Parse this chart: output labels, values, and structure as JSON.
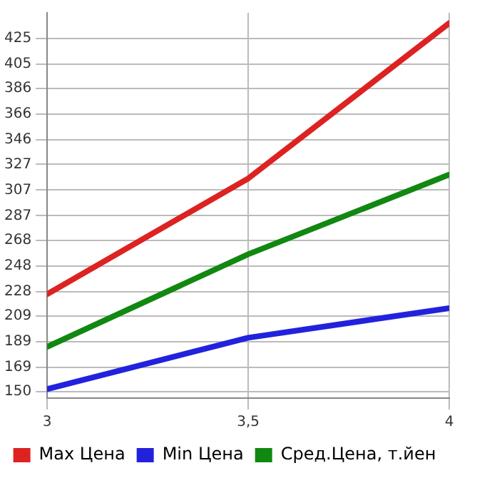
{
  "chart_data": {
    "type": "line",
    "x": [
      3,
      3.5,
      4
    ],
    "xlim": [
      3,
      4
    ],
    "xticks": [
      3,
      {
        "value": 3.5,
        "label": "3,5"
      },
      4
    ],
    "ylim": [
      145,
      445
    ],
    "yticks": [
      150,
      169,
      189,
      209,
      228,
      248,
      268,
      287,
      307,
      327,
      346,
      366,
      386,
      405,
      425
    ],
    "series": [
      {
        "name": "Max Цена",
        "color": "#dd2222",
        "values": [
          226,
          316,
          437
        ]
      },
      {
        "name": "Min Цена",
        "color": "#2222dd",
        "values": [
          152,
          192,
          215
        ]
      },
      {
        "name": "Сред.Цена, т.йен",
        "color": "#118811",
        "values": [
          185,
          257,
          319
        ]
      }
    ],
    "grid": true,
    "legend": "bottom",
    "marker": "none"
  }
}
